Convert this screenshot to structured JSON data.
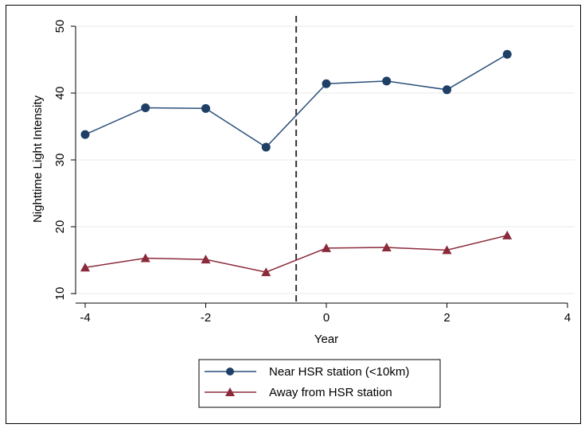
{
  "chart_data": {
    "type": "line",
    "title": "",
    "xlabel": "Year",
    "ylabel": "Nighttime Light Intensity",
    "xlim": [
      -4,
      4
    ],
    "ylim": [
      10,
      50
    ],
    "xticks": [
      -4,
      -2,
      0,
      2,
      4
    ],
    "yticks": [
      10,
      20,
      30,
      40,
      50
    ],
    "xtick_labels": [
      "-4",
      "-2",
      "0",
      "2",
      "4"
    ],
    "ytick_labels": [
      "10",
      "20",
      "30",
      "40",
      "50"
    ],
    "grid": "horizontal",
    "reference_line": {
      "x": -0.5,
      "style": "dashed"
    },
    "x": [
      -4,
      -3,
      -2,
      -1,
      0,
      1,
      2,
      3
    ],
    "series": [
      {
        "name": "Near HSR station (<10km)",
        "marker": "circle",
        "color": "#2b4f7a",
        "values": [
          33.8,
          37.8,
          37.7,
          31.9,
          41.4,
          41.8,
          40.5,
          45.8
        ]
      },
      {
        "name": "Away from HSR station",
        "marker": "triangle",
        "color": "#8b2a3a",
        "values": [
          13.9,
          15.3,
          15.1,
          13.2,
          16.8,
          16.9,
          16.5,
          18.7
        ]
      }
    ],
    "legend": {
      "position": "bottom"
    }
  }
}
